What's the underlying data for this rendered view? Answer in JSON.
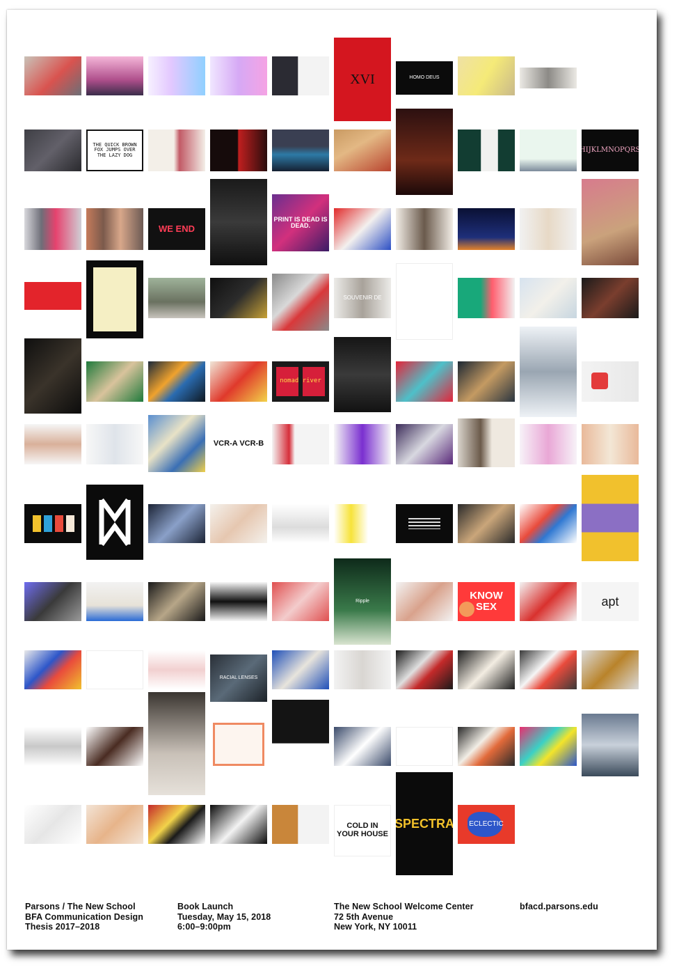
{
  "tile_texts": {
    "homo_deus": "HOMO DEUS",
    "print_dead": "PRINT IS DEAD IS DEAD.",
    "souvenir": "SOUVENIR DE",
    "nomad": "nomad river",
    "know_sex": "KNOW SEX",
    "apt": "apt",
    "racial_lenses": "RACIAL LENSES",
    "ripple": "Ripple",
    "eclectic": "ECLECTIC",
    "spectra": "SPECTRA",
    "your_house": "COLD IN YOUR HOUSE",
    "fox": "THE QUICK BROWN FOX JUMPS OVER THE LAZY DOG",
    "alphabet": "ABCDEFGHIJKLMNOPQRSTUVWXYZ",
    "xvi": "XVI",
    "vcr": "VCR-A VCR-B",
    "we_end": "WE END"
  },
  "footer": {
    "left": [
      "Parsons / The New School",
      "BFA Communication Design",
      "Thesis 2017–2018"
    ],
    "event": [
      "Book Launch",
      "Tuesday, May 15, 2018",
      "6:00–9:00pm"
    ],
    "venue": [
      "The New School Welcome Center",
      "72 5th Avenue",
      "New York, NY 10011"
    ],
    "url": "bfacd.parsons.edu"
  }
}
